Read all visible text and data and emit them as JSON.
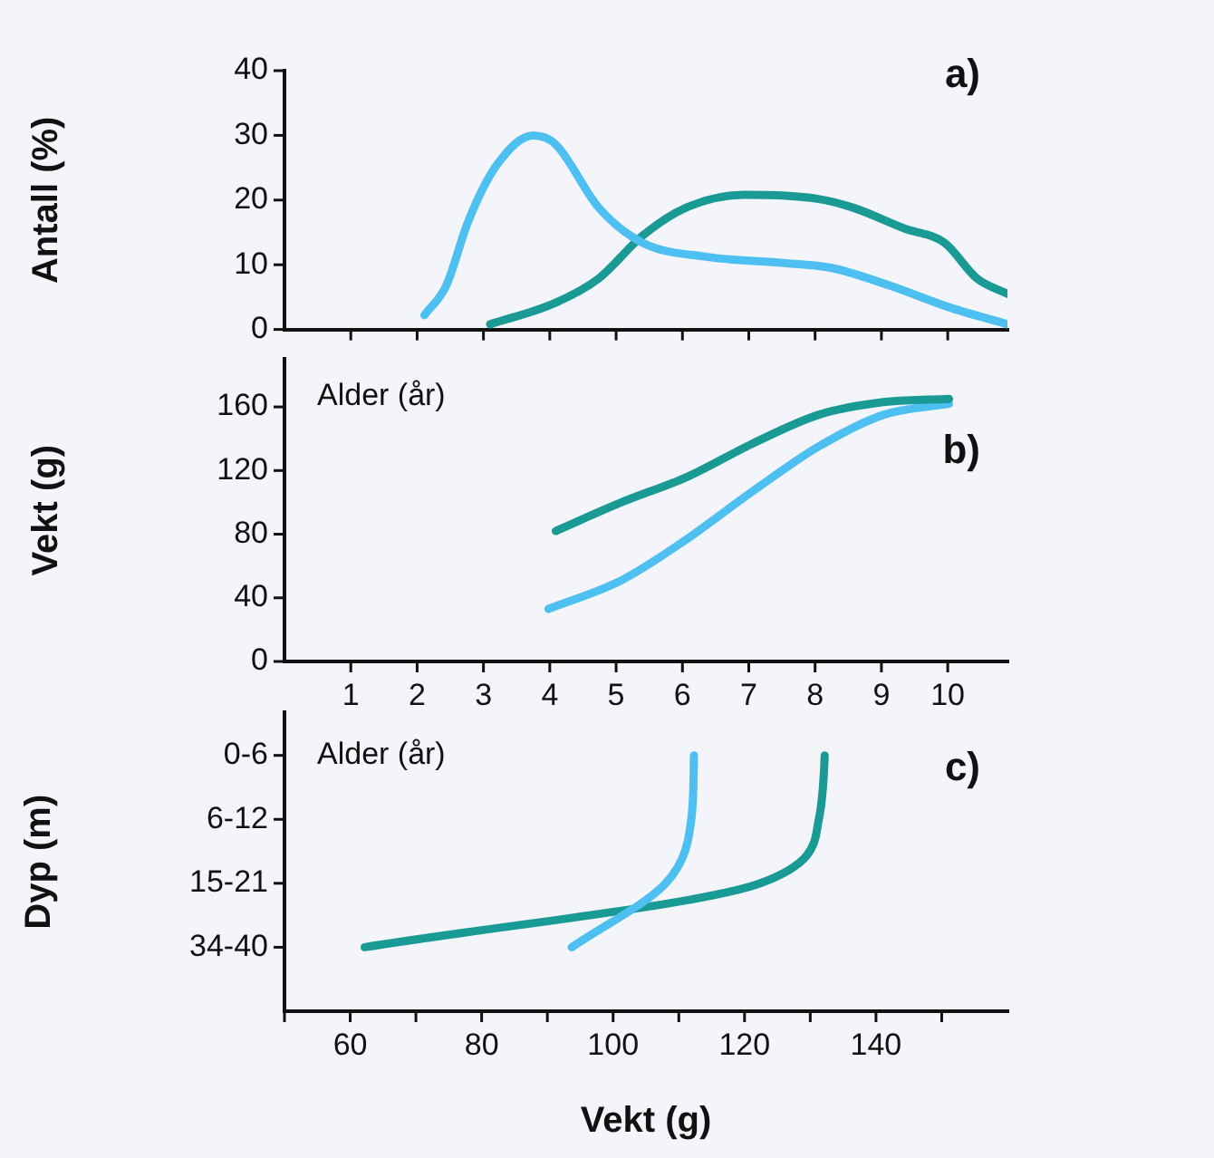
{
  "chart_data": [
    {
      "type": "line",
      "ylabel": "Antall (%)",
      "annotations": [
        "a)"
      ],
      "xlim": [
        0,
        10.9
      ],
      "xticks": [
        1,
        2,
        3,
        4,
        5,
        6,
        7,
        8,
        9,
        10
      ],
      "ylim": [
        0,
        40
      ],
      "yticks": [
        0,
        10,
        20,
        30,
        40
      ],
      "tick_labels": "y",
      "series": [
        {
          "color": "#4dbff0",
          "x": [
            2.11,
            2.44,
            2.77,
            3.2,
            3.75,
            4.08,
            4.74,
            5.4,
            6.38,
            7.48,
            8.25,
            9.12,
            10.0,
            10.9
          ],
          "values": [
            2.2,
            6.8,
            16.7,
            25.4,
            30.0,
            28.7,
            18.8,
            13.4,
            11.2,
            10.3,
            9.5,
            6.8,
            3.5,
            0.8
          ]
        },
        {
          "color": "#1a9a94",
          "x": [
            3.1,
            4.08,
            4.74,
            5.4,
            6.05,
            6.93,
            8.03,
            8.58,
            9.35,
            9.95,
            10.44,
            10.9
          ],
          "values": [
            0.8,
            4.1,
            7.9,
            14.5,
            18.8,
            20.8,
            20.2,
            18.8,
            15.6,
            13.4,
            7.9,
            5.5
          ]
        }
      ]
    },
    {
      "type": "line",
      "ylabel": "Vekt (g)",
      "annotations": [
        "Alder (år)",
        "b)"
      ],
      "xlim": [
        0,
        10.9
      ],
      "xticks": [
        1,
        2,
        3,
        4,
        5,
        6,
        7,
        8,
        9,
        10
      ],
      "ylim": [
        0,
        190
      ],
      "yticks": [
        0,
        40,
        80,
        120,
        160
      ],
      "series": [
        {
          "color": "#1a9a94",
          "x": [
            4.09,
            5.08,
            6.07,
            7.06,
            8.05,
            9.03,
            10.02
          ],
          "values": [
            82,
            100,
            116,
            137,
            155,
            163,
            165
          ]
        },
        {
          "color": "#4dbff0",
          "x": [
            3.98,
            5.08,
            6.07,
            7.06,
            8.05,
            9.03,
            10.02
          ],
          "values": [
            33,
            51,
            77,
            107,
            135,
            155,
            162
          ]
        }
      ]
    },
    {
      "type": "line",
      "orientation": "horizontal",
      "xlabel": "Vekt (g)",
      "ylabel": "Dyp (m)",
      "annotations": [
        "Alder (år)",
        "c)"
      ],
      "categories": [
        "0-6",
        "6-12",
        "15-21",
        "34-40"
      ],
      "xlim": [
        50,
        160
      ],
      "xticks": [
        {
          "value": 50,
          "label": null
        },
        60,
        {
          "value": 70,
          "label": null
        },
        80,
        {
          "value": 90,
          "label": null
        },
        100,
        {
          "value": 110,
          "label": null
        },
        120,
        {
          "value": 130,
          "label": null
        },
        140,
        {
          "value": 150,
          "label": null
        }
      ],
      "series": [
        {
          "color": "#4dbff0",
          "values": [
            112.3,
            111.9,
            108,
            93.7
          ]
        },
        {
          "color": "#1a9a94",
          "values": [
            132.2,
            131.3,
            122.4,
            62.2
          ]
        }
      ]
    }
  ]
}
